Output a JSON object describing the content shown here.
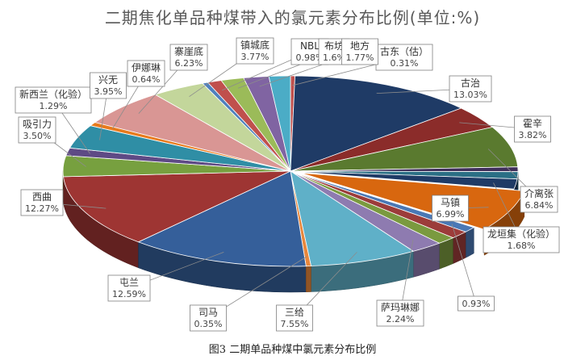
{
  "title": "二期焦化单品种煤带入的氯元素分布比例(单位:%)",
  "caption": "图3 二期单品种煤中氯元素分布比例",
  "chart_data": {
    "type": "pie",
    "title": "二期焦化单品种煤带入的氯元素分布比例(单位:%)",
    "legend": "none",
    "slices": [
      {
        "label": "古东（估）",
        "value": 0.31,
        "color": "#c0504d"
      },
      {
        "label": "古治",
        "value": 13.03,
        "color": "#1f3b66"
      },
      {
        "label": "霍辛",
        "value": 3.82,
        "color": "#8b2c2a"
      },
      {
        "label": "介离张",
        "value": 6.84,
        "color": "#5a7a2f"
      },
      {
        "label": "",
        "value": 0.8,
        "color": "#3f2f5a"
      },
      {
        "label": "",
        "value": 1.2,
        "color": "#2b6f85"
      },
      {
        "label": "龙垣集（化验）",
        "value": 1.68,
        "color": "#1f3b66"
      },
      {
        "label": "马镇",
        "value": 6.99,
        "color": "#d8670f"
      },
      {
        "label": "",
        "value": 0.93,
        "color": "#4a78b5"
      },
      {
        "label": "",
        "value": 1.3,
        "color": "#9c3c3a"
      },
      {
        "label": "",
        "value": 1.3,
        "color": "#7a9a3f"
      },
      {
        "label": "萨玛琳娜",
        "value": 2.24,
        "color": "#8e7bb0"
      },
      {
        "label": "三给",
        "value": 7.55,
        "color": "#5fb0c8"
      },
      {
        "label": "司马",
        "value": 0.35,
        "color": "#e8873c"
      },
      {
        "label": "屯兰",
        "value": 12.59,
        "color": "#355f9a"
      },
      {
        "label": "西曲",
        "value": 12.27,
        "color": "#9e3533"
      },
      {
        "label": "吸引力",
        "value": 3.5,
        "color": "#77a03f"
      },
      {
        "label": "新西兰（化验）",
        "value": 1.29,
        "color": "#5e4a85"
      },
      {
        "label": "兴无",
        "value": 3.95,
        "color": "#2f8ea5"
      },
      {
        "label": "伊娜琳",
        "value": 0.64,
        "color": "#e87a1c"
      },
      {
        "label": "寨崖底",
        "value": 6.23,
        "color": "#d99694"
      },
      {
        "label": "镇城底",
        "value": 3.77,
        "color": "#c3d69b"
      },
      {
        "label": "",
        "value": 0.4,
        "color": "#4f81bd"
      },
      {
        "label": "NBL",
        "value": 0.98,
        "color": "#c0504d"
      },
      {
        "label": "布坊",
        "value": 1.6,
        "color": "#9bbb59"
      },
      {
        "label": "地方",
        "value": 1.77,
        "color": "#8064a2"
      },
      {
        "label": "",
        "value": 1.5,
        "color": "#4bacc6"
      }
    ],
    "labels": [
      {
        "name": "古东（估）",
        "value": "0.31%"
      },
      {
        "name": "古治",
        "value": "13.03%"
      },
      {
        "name": "霍辛",
        "value": "3.82%"
      },
      {
        "name": "介离张",
        "value": "6.84%"
      },
      {
        "name": "",
        "value": ""
      },
      {
        "name": "",
        "value": ""
      },
      {
        "name": "龙垣集（化验）",
        "value": "1.68%"
      },
      {
        "name": "马镇",
        "value": "6.99%"
      },
      {
        "name": "",
        "value": "0.93%"
      },
      {
        "name": "",
        "value": ""
      },
      {
        "name": "",
        "value": ""
      },
      {
        "name": "萨玛琳娜",
        "value": "2.24%"
      },
      {
        "name": "三给",
        "value": "7.55%"
      },
      {
        "name": "司马",
        "value": "0.35%"
      },
      {
        "name": "屯兰",
        "value": "12.59%"
      },
      {
        "name": "西曲",
        "value": "12.27%"
      },
      {
        "name": "吸引力",
        "value": "3.50%"
      },
      {
        "name": "新西兰（化验）",
        "value": "1.29%"
      },
      {
        "name": "兴无",
        "value": "3.95%"
      },
      {
        "name": "伊娜琳",
        "value": "0.64%"
      },
      {
        "name": "寨崖底",
        "value": "6.23%"
      },
      {
        "name": "镇城底",
        "value": "3.77%"
      },
      {
        "name": "",
        "value": ""
      },
      {
        "name": "NBL",
        "value": "0.98%"
      },
      {
        "name": "布坊",
        "value": "1.6%"
      },
      {
        "name": "地方",
        "value": "1.77%"
      },
      {
        "name": "",
        "value": ""
      }
    ]
  }
}
